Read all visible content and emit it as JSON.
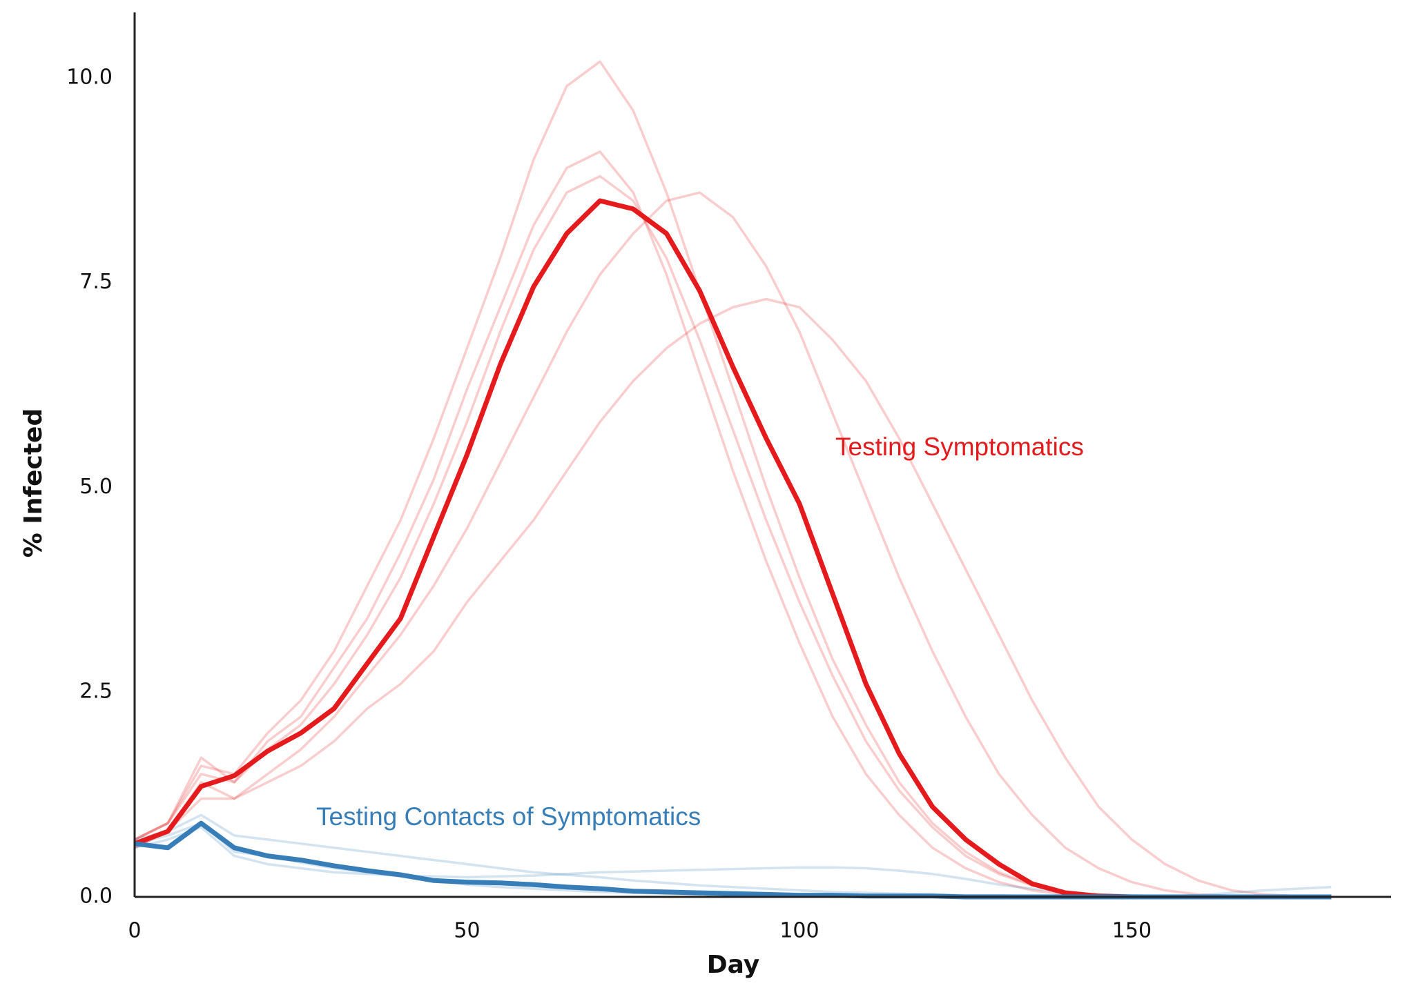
{
  "chart_data": {
    "type": "line",
    "x_label": "Day",
    "y_label": "% Infected",
    "x": [
      0,
      5,
      10,
      15,
      20,
      25,
      30,
      35,
      40,
      45,
      50,
      55,
      60,
      65,
      70,
      75,
      80,
      85,
      90,
      95,
      100,
      105,
      110,
      115,
      120,
      125,
      130,
      135,
      140,
      145,
      150,
      155,
      160,
      165,
      170,
      175,
      180
    ],
    "xlim": [
      0,
      189
    ],
    "ylim": [
      0,
      10.8
    ],
    "xticks": [
      0,
      50,
      100,
      150
    ],
    "yticks": [
      {
        "value": 0,
        "label": "0.0"
      },
      {
        "value": 2.5,
        "label": "2.5"
      },
      {
        "value": 5,
        "label": "5.0"
      },
      {
        "value": 7.5,
        "label": "7.5"
      },
      {
        "value": 10,
        "label": "10.0"
      }
    ],
    "grid": false,
    "series": [
      {
        "name": "Testing Symptomatics",
        "color": "#e41a1c",
        "values": [
          0.65,
          0.8,
          1.35,
          1.48,
          1.78,
          2.0,
          2.3,
          2.85,
          3.4,
          4.4,
          5.4,
          6.5,
          7.45,
          8.1,
          8.5,
          8.4,
          8.1,
          7.4,
          6.47,
          5.6,
          4.8,
          3.7,
          2.6,
          1.75,
          1.1,
          0.7,
          0.4,
          0.16,
          0.05,
          0.01,
          0,
          0,
          0,
          0,
          0,
          0,
          0
        ],
        "runs": [
          [
            0.7,
            0.9,
            1.6,
            1.5,
            2.0,
            2.4,
            3.0,
            3.8,
            4.6,
            5.6,
            6.7,
            7.8,
            9.0,
            9.9,
            10.2,
            9.6,
            8.6,
            7.4,
            6.2,
            5.0,
            3.9,
            2.9,
            2.1,
            1.4,
            0.9,
            0.55,
            0.3,
            0.15,
            0.06,
            0.02,
            0,
            0,
            0,
            0,
            0,
            0,
            0
          ],
          [
            0.6,
            0.8,
            1.2,
            1.2,
            1.4,
            1.6,
            1.9,
            2.3,
            2.6,
            3.0,
            3.6,
            4.1,
            4.6,
            5.2,
            5.8,
            6.3,
            6.7,
            7.0,
            7.2,
            7.3,
            7.2,
            6.8,
            6.3,
            5.6,
            4.8,
            4.0,
            3.2,
            2.4,
            1.7,
            1.1,
            0.7,
            0.4,
            0.2,
            0.08,
            0.03,
            0.01,
            0
          ],
          [
            0.7,
            0.9,
            1.7,
            1.4,
            1.9,
            2.2,
            2.8,
            3.4,
            4.2,
            5.1,
            6.2,
            7.2,
            8.2,
            8.9,
            9.1,
            8.6,
            7.6,
            6.4,
            5.2,
            4.1,
            3.1,
            2.2,
            1.5,
            1.0,
            0.6,
            0.35,
            0.18,
            0.08,
            0.03,
            0.01,
            0,
            0,
            0,
            0,
            0,
            0,
            0
          ],
          [
            0.6,
            0.8,
            1.4,
            1.2,
            1.5,
            1.8,
            2.2,
            2.7,
            3.2,
            3.8,
            4.5,
            5.3,
            6.1,
            6.9,
            7.6,
            8.1,
            8.5,
            8.6,
            8.3,
            7.7,
            6.9,
            5.9,
            4.9,
            3.9,
            3.0,
            2.2,
            1.5,
            1.0,
            0.6,
            0.35,
            0.18,
            0.08,
            0.03,
            0.01,
            0,
            0,
            0
          ],
          [
            0.7,
            0.9,
            1.5,
            1.4,
            1.8,
            2.1,
            2.6,
            3.2,
            3.9,
            4.8,
            5.8,
            6.9,
            7.9,
            8.6,
            8.8,
            8.5,
            7.8,
            6.8,
            5.7,
            4.6,
            3.6,
            2.7,
            1.9,
            1.3,
            0.85,
            0.5,
            0.28,
            0.14,
            0.06,
            0.02,
            0,
            0,
            0,
            0,
            0,
            0,
            0
          ]
        ]
      },
      {
        "name": "Testing Contacts of Symptomatics",
        "color": "#377eb8",
        "values": [
          0.65,
          0.6,
          0.9,
          0.6,
          0.5,
          0.45,
          0.38,
          0.32,
          0.27,
          0.2,
          0.18,
          0.17,
          0.15,
          0.12,
          0.1,
          0.07,
          0.06,
          0.05,
          0.04,
          0.03,
          0.02,
          0.02,
          0.01,
          0.01,
          0.01,
          0,
          0,
          0,
          0,
          0,
          0,
          0,
          0,
          0,
          0,
          0,
          0
        ],
        "runs": [
          [
            0.7,
            0.8,
            1.0,
            0.75,
            0.7,
            0.65,
            0.6,
            0.55,
            0.5,
            0.45,
            0.4,
            0.35,
            0.3,
            0.27,
            0.24,
            0.2,
            0.17,
            0.14,
            0.12,
            0.1,
            0.08,
            0.06,
            0.05,
            0.04,
            0.03,
            0.02,
            0.02,
            0.01,
            0.01,
            0.01,
            0.01,
            0.01,
            0.02,
            0.05,
            0.08,
            0.1,
            0.12
          ],
          [
            0.6,
            0.7,
            0.85,
            0.5,
            0.4,
            0.35,
            0.3,
            0.28,
            0.26,
            0.25,
            0.24,
            0.25,
            0.26,
            0.28,
            0.3,
            0.31,
            0.32,
            0.33,
            0.34,
            0.35,
            0.36,
            0.36,
            0.35,
            0.32,
            0.28,
            0.22,
            0.15,
            0.1,
            0.06,
            0.03,
            0.02,
            0.01,
            0.01,
            0,
            0,
            0,
            0
          ],
          [
            0.65,
            0.75,
            0.9,
            0.55,
            0.5,
            0.42,
            0.35,
            0.3,
            0.25,
            0.2,
            0.15,
            0.12,
            0.1,
            0.08,
            0.06,
            0.05,
            0.04,
            0.03,
            0.02,
            0.01,
            0.01,
            0,
            0,
            0,
            0,
            0,
            0,
            0,
            0,
            0,
            0,
            0,
            0,
            0,
            0,
            0,
            0
          ]
        ]
      }
    ]
  }
}
